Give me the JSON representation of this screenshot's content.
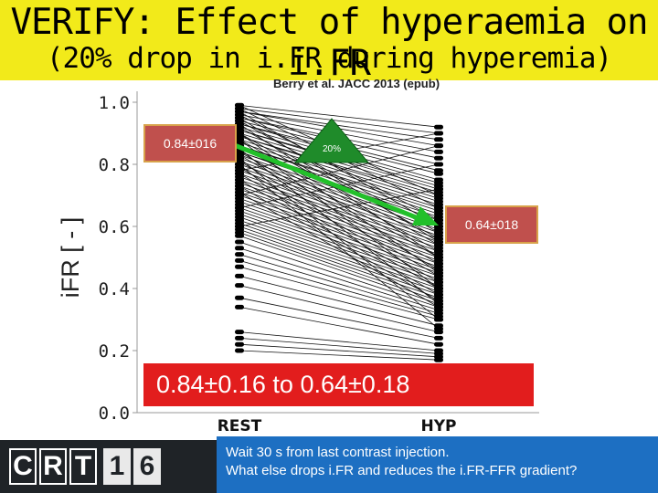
{
  "header": {
    "title": "VERIFY: Effect of hyperaemia on i.FR",
    "subtitle": "(20% drop in i.FR during hyperemia)"
  },
  "source": "Berry et al. JACC 2013 (epub)",
  "annotations": {
    "rest_value": "0.84±016",
    "hyp_value": "0.64±018",
    "drop_label": "20%",
    "summary": "0.84±0.16 to 0.64±0.18"
  },
  "footer": {
    "logo_letters": [
      "C",
      "R",
      "T",
      "1",
      "6"
    ],
    "note_line1": "Wait 30 s from last contrast injection.",
    "note_line2": "What else drops i.FR and reduces the i.FR-FFR gradient?"
  },
  "colors": {
    "title_band": "#f2ea1a",
    "value_box": "#c0504d",
    "summary_box": "#e21d1d",
    "trend_arrow": "#22c02a",
    "note_box": "#1d6fc2"
  },
  "chart_data": {
    "type": "line",
    "title": "",
    "xlabel": "",
    "ylabel": "iFR [ - ]",
    "categories": [
      "REST",
      "HYP"
    ],
    "ylim": [
      0,
      1
    ],
    "yticks": [
      "0.0",
      "0.2",
      "0.4",
      "0.6",
      "0.8",
      "1.0"
    ],
    "series": [
      {
        "values": [
          0.99,
          0.92
        ]
      },
      {
        "values": [
          0.98,
          0.9
        ]
      },
      {
        "values": [
          0.97,
          0.88
        ]
      },
      {
        "values": [
          0.97,
          0.86
        ]
      },
      {
        "values": [
          0.96,
          0.84
        ]
      },
      {
        "values": [
          0.95,
          0.82
        ]
      },
      {
        "values": [
          0.95,
          0.8
        ]
      },
      {
        "values": [
          0.94,
          0.78
        ]
      },
      {
        "values": [
          0.93,
          0.77
        ]
      },
      {
        "values": [
          0.93,
          0.75
        ]
      },
      {
        "values": [
          0.92,
          0.74
        ]
      },
      {
        "values": [
          0.91,
          0.73
        ]
      },
      {
        "values": [
          0.91,
          0.72
        ]
      },
      {
        "values": [
          0.9,
          0.71
        ]
      },
      {
        "values": [
          0.89,
          0.7
        ]
      },
      {
        "values": [
          0.89,
          0.69
        ]
      },
      {
        "values": [
          0.88,
          0.68
        ]
      },
      {
        "values": [
          0.87,
          0.67
        ]
      },
      {
        "values": [
          0.86,
          0.66
        ]
      },
      {
        "values": [
          0.86,
          0.65
        ]
      },
      {
        "values": [
          0.85,
          0.64
        ]
      },
      {
        "values": [
          0.84,
          0.63
        ]
      },
      {
        "values": [
          0.84,
          0.62
        ]
      },
      {
        "values": [
          0.83,
          0.61
        ]
      },
      {
        "values": [
          0.82,
          0.6
        ]
      },
      {
        "values": [
          0.81,
          0.59
        ]
      },
      {
        "values": [
          0.8,
          0.58
        ]
      },
      {
        "values": [
          0.79,
          0.57
        ]
      },
      {
        "values": [
          0.78,
          0.56
        ]
      },
      {
        "values": [
          0.77,
          0.55
        ]
      },
      {
        "values": [
          0.76,
          0.54
        ]
      },
      {
        "values": [
          0.75,
          0.53
        ]
      },
      {
        "values": [
          0.74,
          0.52
        ]
      },
      {
        "values": [
          0.73,
          0.51
        ]
      },
      {
        "values": [
          0.72,
          0.5
        ]
      },
      {
        "values": [
          0.71,
          0.49
        ]
      },
      {
        "values": [
          0.7,
          0.48
        ]
      },
      {
        "values": [
          0.69,
          0.47
        ]
      },
      {
        "values": [
          0.68,
          0.46
        ]
      },
      {
        "values": [
          0.67,
          0.45
        ]
      },
      {
        "values": [
          0.66,
          0.44
        ]
      },
      {
        "values": [
          0.65,
          0.43
        ]
      },
      {
        "values": [
          0.64,
          0.42
        ]
      },
      {
        "values": [
          0.63,
          0.41
        ]
      },
      {
        "values": [
          0.62,
          0.4
        ]
      },
      {
        "values": [
          0.61,
          0.39
        ]
      },
      {
        "values": [
          0.6,
          0.38
        ]
      },
      {
        "values": [
          0.59,
          0.37
        ]
      },
      {
        "values": [
          0.58,
          0.36
        ]
      },
      {
        "values": [
          0.57,
          0.35
        ]
      },
      {
        "values": [
          0.55,
          0.34
        ]
      },
      {
        "values": [
          0.53,
          0.33
        ]
      },
      {
        "values": [
          0.51,
          0.32
        ]
      },
      {
        "values": [
          0.49,
          0.31
        ]
      },
      {
        "values": [
          0.47,
          0.3
        ]
      },
      {
        "values": [
          0.44,
          0.28
        ]
      },
      {
        "values": [
          0.41,
          0.26
        ]
      },
      {
        "values": [
          0.37,
          0.24
        ]
      },
      {
        "values": [
          0.34,
          0.22
        ]
      },
      {
        "values": [
          0.26,
          0.2
        ]
      },
      {
        "values": [
          0.24,
          0.19
        ]
      },
      {
        "values": [
          0.22,
          0.18
        ]
      },
      {
        "values": [
          0.2,
          0.17
        ]
      },
      {
        "values": [
          0.97,
          0.6
        ]
      },
      {
        "values": [
          0.95,
          0.55
        ]
      },
      {
        "values": [
          0.93,
          0.5
        ]
      },
      {
        "values": [
          0.9,
          0.45
        ]
      },
      {
        "values": [
          0.88,
          0.4
        ]
      },
      {
        "values": [
          0.85,
          0.35
        ]
      },
      {
        "values": [
          0.82,
          0.3
        ]
      },
      {
        "values": [
          0.8,
          0.27
        ]
      },
      {
        "values": [
          0.78,
          0.9
        ]
      },
      {
        "values": [
          0.7,
          0.86
        ]
      },
      {
        "values": [
          0.66,
          0.8
        ]
      },
      {
        "values": [
          0.6,
          0.72
        ]
      },
      {
        "values": [
          0.99,
          0.7
        ]
      },
      {
        "values": [
          0.98,
          0.66
        ]
      },
      {
        "values": [
          0.96,
          0.62
        ]
      },
      {
        "values": [
          0.94,
          0.58
        ]
      },
      {
        "values": [
          0.92,
          0.56
        ]
      },
      {
        "values": [
          0.9,
          0.54
        ]
      },
      {
        "values": [
          0.88,
          0.52
        ]
      },
      {
        "values": [
          0.86,
          0.5
        ]
      },
      {
        "values": [
          0.84,
          0.48
        ]
      },
      {
        "values": [
          0.83,
          0.46
        ]
      },
      {
        "values": [
          0.81,
          0.44
        ]
      },
      {
        "values": [
          0.79,
          0.42
        ]
      },
      {
        "values": [
          0.77,
          0.4
        ]
      },
      {
        "values": [
          0.75,
          0.38
        ]
      },
      {
        "values": [
          0.73,
          0.36
        ]
      },
      {
        "values": [
          0.71,
          0.34
        ]
      }
    ]
  }
}
